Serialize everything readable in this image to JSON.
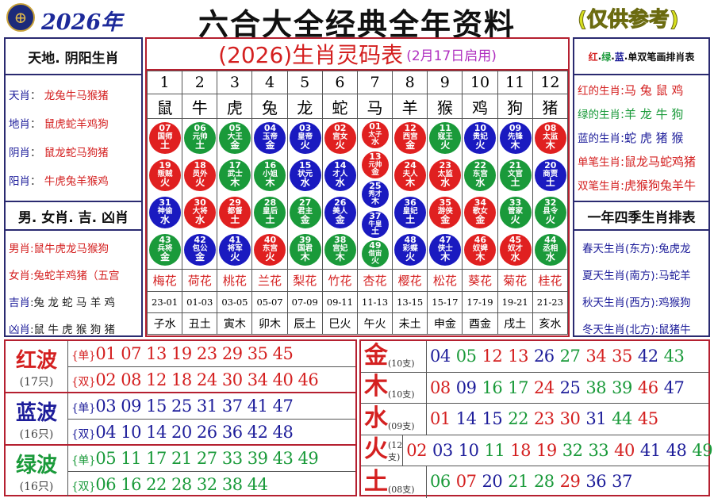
{
  "header": {
    "year": "2026年",
    "title": "六合大全经典全年资料",
    "note": "(仅供参考)"
  },
  "colors": {
    "red": "#d42020",
    "green": "#1a9a3a",
    "blue": "#1d1d9a"
  },
  "left": {
    "s1_title": "天地. 阴阳生肖",
    "s1": [
      {
        "k": "天肖",
        "v": "龙兔牛马猴猪"
      },
      {
        "k": "地肖",
        "v": "鼠虎蛇羊鸡狗"
      },
      {
        "k": "阴肖",
        "v": "鼠龙蛇马狗猪"
      },
      {
        "k": "阳肖",
        "v": "牛虎兔羊猴鸡"
      }
    ],
    "s2_title": "男. 女肖. 吉. 凶肖",
    "s2": [
      {
        "k": "男肖",
        "v": ":鼠牛虎龙马猴狗"
      },
      {
        "k": "女肖",
        "v": ":兔蛇羊鸡猪（五宫"
      },
      {
        "k": "吉肖",
        "v": ":兔 龙 蛇 马 羊 鸡"
      },
      {
        "k": "凶肖",
        "v": ":鼠 牛 虎 猴 狗 猪"
      }
    ]
  },
  "right": {
    "s1_title": [
      "红",
      "绿",
      "蓝",
      "单双笔画排肖表"
    ],
    "s1": [
      {
        "k": "红的生肖",
        "v": ":马 兔 鼠 鸡",
        "c": "red"
      },
      {
        "k": "绿的生肖",
        "v": ":羊 龙 牛 狗",
        "c": "green"
      },
      {
        "k": "蓝的生肖",
        "v": ":蛇 虎 猪 猴",
        "c": "blue"
      },
      {
        "k": "单笔生肖",
        "v": ":鼠龙马蛇鸡猪",
        "c": "red"
      },
      {
        "k": "双笔生肖",
        "v": ":虎猴狗兔羊牛",
        "c": "red"
      }
    ],
    "s2_title": "一年四季生肖排表",
    "s2": [
      {
        "k": "春天生肖(东方)",
        "v": ":兔虎龙"
      },
      {
        "k": "夏天生肖(南方)",
        "v": ":马蛇羊"
      },
      {
        "k": "秋天生肖(西方)",
        "v": ":鸡猴狗"
      },
      {
        "k": "冬天生肖(北方)",
        "v": ":鼠猪牛"
      }
    ]
  },
  "table": {
    "title": "(2026)生肖灵码表",
    "subtitle": "(2月17日启用)",
    "numbers": [
      "1",
      "2",
      "3",
      "4",
      "5",
      "6",
      "7",
      "8",
      "9",
      "10",
      "11",
      "12"
    ],
    "zodiac": [
      "鼠",
      "牛",
      "虎",
      "兔",
      "龙",
      "蛇",
      "马",
      "羊",
      "猴",
      "鸡",
      "狗",
      "猪"
    ],
    "flowers": [
      "梅花",
      "荷花",
      "桃花",
      "兰花",
      "梨花",
      "竹花",
      "杏花",
      "樱花",
      "松花",
      "葵花",
      "菊花",
      "桂花"
    ],
    "times": [
      "23-01",
      "01-03",
      "03-05",
      "05-07",
      "07-09",
      "09-11",
      "11-13",
      "13-15",
      "15-17",
      "17-19",
      "19-21",
      "21-23"
    ],
    "branches": [
      "子水",
      "丑土",
      "寅木",
      "卯木",
      "辰土",
      "巳火",
      "午火",
      "未土",
      "申金",
      "酉金",
      "戌土",
      "亥水"
    ],
    "balls": [
      [
        [
          "07",
          "国师",
          "土",
          "r"
        ],
        [
          "19",
          "叛贼",
          "火",
          "r"
        ],
        [
          "31",
          "神偷",
          "水",
          "bl"
        ],
        [
          "43",
          "兵将",
          "金",
          "gr"
        ]
      ],
      [
        [
          "06",
          "元帅",
          "土",
          "gr"
        ],
        [
          "18",
          "员外",
          "火",
          "r"
        ],
        [
          "30",
          "大将",
          "水",
          "r"
        ],
        [
          "42",
          "包公",
          "金",
          "bl"
        ]
      ],
      [
        [
          "05",
          "大王",
          "金",
          "gr"
        ],
        [
          "17",
          "武士",
          "木",
          "gr"
        ],
        [
          "29",
          "都督",
          "土",
          "r"
        ],
        [
          "41",
          "将军",
          "火",
          "bl"
        ]
      ],
      [
        [
          "04",
          "玉帝",
          "金",
          "bl"
        ],
        [
          "16",
          "小姐",
          "木",
          "gr"
        ],
        [
          "28",
          "皇后",
          "土",
          "gr"
        ],
        [
          "40",
          "东宫",
          "火",
          "r"
        ]
      ],
      [
        [
          "03",
          "皇帝",
          "火",
          "bl"
        ],
        [
          "15",
          "状元",
          "水",
          "bl"
        ],
        [
          "27",
          "君主",
          "金",
          "gr"
        ],
        [
          "39",
          "国君",
          "木",
          "gr"
        ]
      ],
      [
        [
          "02",
          "宫女",
          "火",
          "r"
        ],
        [
          "14",
          "才人",
          "水",
          "bl"
        ],
        [
          "26",
          "美人",
          "金",
          "bl"
        ],
        [
          "38",
          "宫妃",
          "木",
          "gr"
        ]
      ],
      [
        [
          "01",
          "太子",
          "水",
          "r"
        ],
        [
          "13",
          "元帅",
          "金",
          "r"
        ],
        [
          "25",
          "秀才",
          "木",
          "bl"
        ],
        [
          "37",
          "牛皇",
          "土",
          "bl"
        ],
        [
          "49",
          "借宙",
          "火",
          "gr"
        ]
      ],
      [
        [
          "12",
          "西宫",
          "金",
          "r"
        ],
        [
          "24",
          "夫人",
          "木",
          "r"
        ],
        [
          "36",
          "皇妃",
          "土",
          "bl"
        ],
        [
          "48",
          "彩蝶",
          "火",
          "bl"
        ]
      ],
      [
        [
          "11",
          "寇王",
          "火",
          "gr"
        ],
        [
          "23",
          "太监",
          "水",
          "r"
        ],
        [
          "35",
          "游侠",
          "金",
          "r"
        ],
        [
          "47",
          "侠士",
          "木",
          "bl"
        ]
      ],
      [
        [
          "10",
          "贵妃",
          "火",
          "bl"
        ],
        [
          "22",
          "东宫",
          "水",
          "gr"
        ],
        [
          "34",
          "歌女",
          "金",
          "r"
        ],
        [
          "46",
          "奴婢",
          "木",
          "r"
        ]
      ],
      [
        [
          "09",
          "先锋",
          "木",
          "bl"
        ],
        [
          "21",
          "文官",
          "土",
          "gr"
        ],
        [
          "33",
          "管家",
          "火",
          "gr"
        ],
        [
          "45",
          "奴才",
          "水",
          "r"
        ]
      ],
      [
        [
          "08",
          "太监",
          "木",
          "r"
        ],
        [
          "20",
          "商贾",
          "土",
          "bl"
        ],
        [
          "32",
          "县令",
          "火",
          "gr"
        ],
        [
          "44",
          "丞相",
          "水",
          "gr"
        ]
      ]
    ]
  },
  "waves": [
    {
      "name": "红波",
      "count": "(17只)",
      "color": "red",
      "single": "01 07 13 19 23 29 35 45",
      "double": "02 08 12 18 24 30 34 40 46"
    },
    {
      "name": "蓝波",
      "count": "(16只)",
      "color": "blue",
      "single": "03 09 15 25 31 37 41 47",
      "double": "04 10 14 20 26 36 42 48"
    },
    {
      "name": "绿波",
      "count": "(16只)",
      "color": "green",
      "single": "05 11 17 21 27 33 39 43 49",
      "double": "06 16 22 28 32 38 44"
    }
  ],
  "wave_labels": {
    "single": "单",
    "double": "双"
  },
  "elements": [
    {
      "name": "金",
      "count": "(10支)",
      "nums": [
        [
          "04",
          "blue"
        ],
        [
          "05",
          "green"
        ],
        [
          "12",
          "red"
        ],
        [
          "13",
          "red"
        ],
        [
          "26",
          "blue"
        ],
        [
          "27",
          "green"
        ],
        [
          "34",
          "red"
        ],
        [
          "35",
          "red"
        ],
        [
          "42",
          "blue"
        ],
        [
          "43",
          "green"
        ]
      ]
    },
    {
      "name": "木",
      "count": "(10支)",
      "nums": [
        [
          "08",
          "red"
        ],
        [
          "09",
          "blue"
        ],
        [
          "16",
          "green"
        ],
        [
          "17",
          "green"
        ],
        [
          "24",
          "red"
        ],
        [
          "25",
          "blue"
        ],
        [
          "38",
          "green"
        ],
        [
          "39",
          "green"
        ],
        [
          "46",
          "red"
        ],
        [
          "47",
          "blue"
        ]
      ]
    },
    {
      "name": "水",
      "count": "(09支)",
      "nums": [
        [
          "01",
          "red"
        ],
        [
          "14",
          "blue"
        ],
        [
          "15",
          "blue"
        ],
        [
          "22",
          "green"
        ],
        [
          "23",
          "red"
        ],
        [
          "30",
          "red"
        ],
        [
          "31",
          "blue"
        ],
        [
          "44",
          "green"
        ],
        [
          "45",
          "red"
        ]
      ]
    },
    {
      "name": "火",
      "count": "(12支)",
      "nums": [
        [
          "02",
          "red"
        ],
        [
          "03",
          "blue"
        ],
        [
          "10",
          "blue"
        ],
        [
          "11",
          "green"
        ],
        [
          "18",
          "red"
        ],
        [
          "19",
          "red"
        ],
        [
          "32",
          "green"
        ],
        [
          "33",
          "green"
        ],
        [
          "40",
          "red"
        ],
        [
          "41",
          "blue"
        ],
        [
          "48",
          "blue"
        ],
        [
          "49",
          "green"
        ]
      ]
    },
    {
      "name": "土",
      "count": "(08支)",
      "nums": [
        [
          "06",
          "green"
        ],
        [
          "07",
          "red"
        ],
        [
          "20",
          "blue"
        ],
        [
          "21",
          "green"
        ],
        [
          "28",
          "green"
        ],
        [
          "29",
          "red"
        ],
        [
          "36",
          "blue"
        ],
        [
          "37",
          "blue"
        ]
      ]
    }
  ]
}
